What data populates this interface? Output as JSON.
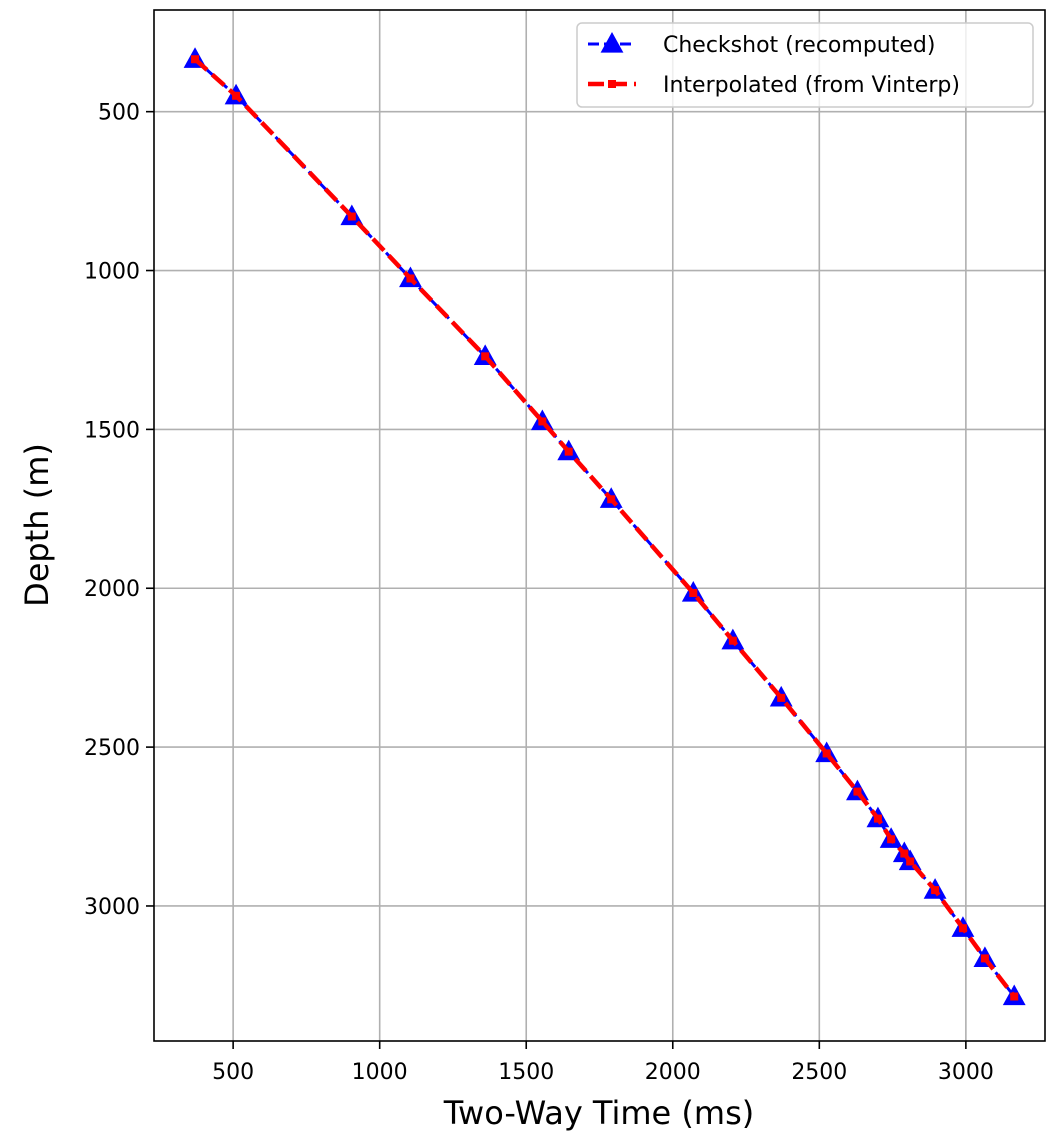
{
  "chart_data": {
    "type": "line",
    "xlabel": "Two-Way Time (ms)",
    "ylabel": "Depth (m)",
    "xlim": [
      230,
      3270
    ],
    "ylim": [
      180,
      3425
    ],
    "y_inverted": true,
    "grid": true,
    "legend_position": "top-right",
    "x_ticks": [
      500,
      1000,
      1500,
      2000,
      2500,
      3000
    ],
    "y_ticks": [
      500,
      1000,
      1500,
      2000,
      2500,
      3000
    ],
    "x_tick_labels": [
      "500",
      "1000",
      "1500",
      "2000",
      "2500",
      "3000"
    ],
    "y_tick_labels": [
      "500",
      "1000",
      "1500",
      "2000",
      "2500",
      "3000"
    ],
    "series": [
      {
        "name": "Checkshot (recomputed)",
        "color": "#0000ff",
        "line_style": "dashed",
        "marker": "triangle",
        "points": [
          [
            370,
            335
          ],
          [
            510,
            450
          ],
          [
            905,
            830
          ],
          [
            1105,
            1025
          ],
          [
            1360,
            1270
          ],
          [
            1555,
            1475
          ],
          [
            1645,
            1570
          ],
          [
            1790,
            1720
          ],
          [
            2070,
            2015
          ],
          [
            2205,
            2165
          ],
          [
            2370,
            2345
          ],
          [
            2525,
            2520
          ],
          [
            2630,
            2640
          ],
          [
            2700,
            2725
          ],
          [
            2745,
            2790
          ],
          [
            2790,
            2835
          ],
          [
            2810,
            2860
          ],
          [
            2895,
            2950
          ],
          [
            2990,
            3070
          ],
          [
            3065,
            3165
          ],
          [
            3165,
            3285
          ]
        ]
      },
      {
        "name": "Interpolated (from Vinterp)",
        "color": "#ff0000",
        "line_style": "dashed",
        "marker": "square",
        "points": [
          [
            370,
            335
          ],
          [
            510,
            450
          ],
          [
            905,
            830
          ],
          [
            1105,
            1025
          ],
          [
            1360,
            1270
          ],
          [
            1555,
            1475
          ],
          [
            1645,
            1570
          ],
          [
            1790,
            1720
          ],
          [
            2070,
            2015
          ],
          [
            2205,
            2165
          ],
          [
            2370,
            2345
          ],
          [
            2525,
            2520
          ],
          [
            2630,
            2640
          ],
          [
            2700,
            2725
          ],
          [
            2745,
            2790
          ],
          [
            2790,
            2835
          ],
          [
            2810,
            2860
          ],
          [
            2895,
            2950
          ],
          [
            2990,
            3070
          ],
          [
            3065,
            3165
          ],
          [
            3165,
            3285
          ]
        ]
      }
    ]
  }
}
